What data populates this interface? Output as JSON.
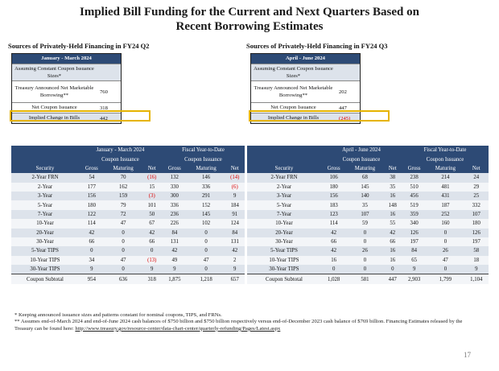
{
  "title_line1": "Implied Bill Funding for the Current and Next Quarters Based on",
  "title_line2": "Recent Borrowing Estimates",
  "left_summary": {
    "source_label": "Sources of Privately-Held Financing in FY24 Q2",
    "header": "January - March 2024",
    "rows": [
      {
        "label": "Assuming Constant Coupon Issuance Sizes*",
        "value": ""
      },
      {
        "label": "Treasury Announced Net Marketable Borrowing**",
        "value": "760"
      },
      {
        "label": "Net Coupon Issuance",
        "value": "318"
      },
      {
        "label": "Implied Change in Bills",
        "value": "442"
      }
    ]
  },
  "right_summary": {
    "source_label": "Sources of Privately-Held Financing in FY24 Q3",
    "header": "April - June 2024",
    "rows": [
      {
        "label": "Assuming Constant Coupon Issuance Sizes*",
        "value": ""
      },
      {
        "label": "Treasury Announced Net Marketable Borrowing**",
        "value": "202"
      },
      {
        "label": "Net Coupon Issuance",
        "value": "447"
      },
      {
        "label": "Implied Change in Bills",
        "value": "(245)"
      }
    ]
  },
  "left_table": {
    "group1": "January - March 2024",
    "group2": "Fiscal Year-to-Date",
    "subgroup": "Coupon Issuance",
    "columns": [
      "Security",
      "Gross",
      "Maturing",
      "Net",
      "Gross",
      "Maturing",
      "Net"
    ],
    "rows": [
      [
        "2-Year FRN",
        "54",
        "70",
        "(16)",
        "132",
        "146",
        "(14)"
      ],
      [
        "2-Year",
        "177",
        "162",
        "15",
        "330",
        "336",
        "(6)"
      ],
      [
        "3-Year",
        "156",
        "159",
        "(3)",
        "300",
        "291",
        "9"
      ],
      [
        "5-Year",
        "180",
        "79",
        "101",
        "336",
        "152",
        "184"
      ],
      [
        "7-Year",
        "122",
        "72",
        "50",
        "236",
        "145",
        "91"
      ],
      [
        "10-Year",
        "114",
        "47",
        "67",
        "226",
        "102",
        "124"
      ],
      [
        "20-Year",
        "42",
        "0",
        "42",
        "84",
        "0",
        "84"
      ],
      [
        "30-Year",
        "66",
        "0",
        "66",
        "131",
        "0",
        "131"
      ],
      [
        "5-Year TIPS",
        "0",
        "0",
        "0",
        "42",
        "0",
        "42"
      ],
      [
        "10-Year TIPS",
        "34",
        "47",
        "(13)",
        "49",
        "47",
        "2"
      ],
      [
        "30-Year TIPS",
        "9",
        "0",
        "9",
        "9",
        "0",
        "9"
      ]
    ],
    "subtotal": [
      "Coupon Subtotal",
      "954",
      "636",
      "318",
      "1,875",
      "1,218",
      "657"
    ]
  },
  "right_table": {
    "group1": "April - June 2024",
    "group2": "Fiscal Year-to-Date",
    "subgroup": "Coupon Issuance",
    "columns": [
      "Security",
      "Gross",
      "Maturing",
      "Net",
      "Gross",
      "Maturing",
      "Net"
    ],
    "rows": [
      [
        "2-Year FRN",
        "106",
        "68",
        "38",
        "238",
        "214",
        "24"
      ],
      [
        "2-Year",
        "180",
        "145",
        "35",
        "510",
        "481",
        "29"
      ],
      [
        "3-Year",
        "156",
        "140",
        "16",
        "456",
        "431",
        "25"
      ],
      [
        "5-Year",
        "183",
        "35",
        "148",
        "519",
        "187",
        "332"
      ],
      [
        "7-Year",
        "123",
        "107",
        "16",
        "359",
        "252",
        "107"
      ],
      [
        "10-Year",
        "114",
        "59",
        "55",
        "340",
        "160",
        "180"
      ],
      [
        "20-Year",
        "42",
        "0",
        "42",
        "126",
        "0",
        "126"
      ],
      [
        "30-Year",
        "66",
        "0",
        "66",
        "197",
        "0",
        "197"
      ],
      [
        "5-Year TIPS",
        "42",
        "26",
        "16",
        "84",
        "26",
        "58"
      ],
      [
        "10-Year TIPS",
        "16",
        "0",
        "16",
        "65",
        "47",
        "18"
      ],
      [
        "30-Year TIPS",
        "0",
        "0",
        "0",
        "9",
        "0",
        "9"
      ]
    ],
    "subtotal": [
      "Coupon Subtotal",
      "1,028",
      "581",
      "447",
      "2,903",
      "1,799",
      "1,104"
    ]
  },
  "footnote1": "* Keeping announced issuance sizes and patterns constant for nominal coupons, TIPS, and FRNs.",
  "footnote2": "** Assumes end-of-March 2024 and end-of-June 2024 cash balances of $750 billion and $750 billion respectively versus end-of-December 2023 cash balance of $769 billion. Financing Estimates released by the Treasury can be found here:",
  "footnote_link": "http://www.treasury.gov/resource-center/data-chart-center/quarterly-refunding/Pages/Latest.aspx",
  "page_number": "17",
  "colors": {
    "header_bg": "#2d4a75",
    "highlight": "#e6b400",
    "negative": "#dd0000"
  }
}
